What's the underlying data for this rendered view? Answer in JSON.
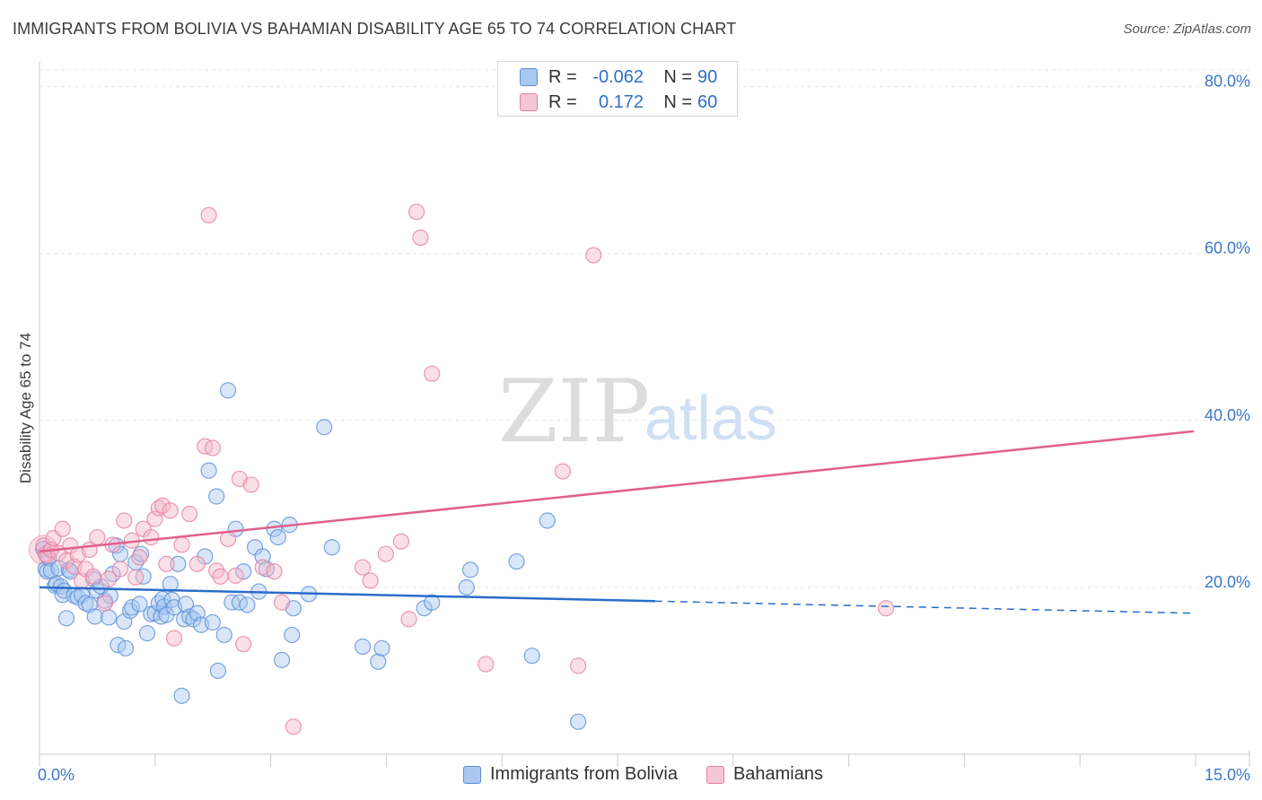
{
  "header": {
    "title": "IMMIGRANTS FROM BOLIVIA VS BAHAMIAN DISABILITY AGE 65 TO 74 CORRELATION CHART",
    "source": "Source: ZipAtlas.com"
  },
  "watermark": {
    "zip": "ZIP",
    "atlas": "atlas"
  },
  "stats_legend": {
    "rows": [
      {
        "r_label": "R =",
        "r_value": "-0.062",
        "n_label": "N =",
        "n_value": "90"
      },
      {
        "r_label": "R =",
        "r_value": "0.172",
        "n_label": "N =",
        "n_value": "60"
      }
    ]
  },
  "colors": {
    "blue_fill": "#a9c8f0",
    "blue_stroke": "#5b8fd8",
    "blue_line": "#2a6dc9",
    "pink_fill": "#f5b7c9",
    "pink_stroke": "#e67fa0",
    "pink_line": "#e0608a",
    "axis_text": "#3a78c8",
    "grid": "#e5e5e5"
  },
  "chart_data": {
    "type": "scatter",
    "title": "IMMIGRANTS FROM BOLIVIA VS BAHAMIAN DISABILITY AGE 65 TO 74 CORRELATION CHART",
    "xlabel": "",
    "ylabel": "Disability Age 65 to 74",
    "xlim": [
      0,
      15
    ],
    "ylim": [
      0,
      82
    ],
    "x_tick_labels": [
      {
        "value": 0,
        "label": "0.0%"
      },
      {
        "value": 15,
        "label": "15.0%"
      }
    ],
    "y_tick_labels": [
      {
        "value": 20,
        "label": "20.0%"
      },
      {
        "value": 40,
        "label": "40.0%"
      },
      {
        "value": 60,
        "label": "60.0%"
      },
      {
        "value": 80,
        "label": "80.0%"
      }
    ],
    "grid": true,
    "legend_position": "top-center",
    "series": [
      {
        "name": "Immigrants from Bolivia",
        "color": "blue",
        "trend": {
          "x": [
            0,
            15
          ],
          "y": [
            20.0,
            16.9
          ],
          "solid_until": 8.0
        },
        "points": [
          [
            0.05,
            24.6
          ],
          [
            0.08,
            22.2
          ],
          [
            0.1,
            21.9
          ],
          [
            0.12,
            23.5
          ],
          [
            0.15,
            22.0
          ],
          [
            0.2,
            20.2
          ],
          [
            0.22,
            20.4
          ],
          [
            0.25,
            22.3
          ],
          [
            0.28,
            20.1
          ],
          [
            0.3,
            19.1
          ],
          [
            0.32,
            19.6
          ],
          [
            0.35,
            16.3
          ],
          [
            0.38,
            22.1
          ],
          [
            0.4,
            21.9
          ],
          [
            0.45,
            19.0
          ],
          [
            0.5,
            18.8
          ],
          [
            0.55,
            19.1
          ],
          [
            0.6,
            18.1
          ],
          [
            0.65,
            17.9
          ],
          [
            0.7,
            21.0
          ],
          [
            0.72,
            16.5
          ],
          [
            0.75,
            19.6
          ],
          [
            0.8,
            20.1
          ],
          [
            0.85,
            18.4
          ],
          [
            0.9,
            16.4
          ],
          [
            0.92,
            19.0
          ],
          [
            0.95,
            21.6
          ],
          [
            1.0,
            25.0
          ],
          [
            1.02,
            13.1
          ],
          [
            1.05,
            24.0
          ],
          [
            1.1,
            15.9
          ],
          [
            1.12,
            12.7
          ],
          [
            1.18,
            17.2
          ],
          [
            1.2,
            17.6
          ],
          [
            1.25,
            23.0
          ],
          [
            1.3,
            18.0
          ],
          [
            1.32,
            24.0
          ],
          [
            1.35,
            21.3
          ],
          [
            1.4,
            14.5
          ],
          [
            1.45,
            16.8
          ],
          [
            1.5,
            16.9
          ],
          [
            1.55,
            18.1
          ],
          [
            1.58,
            16.5
          ],
          [
            1.6,
            18.6
          ],
          [
            1.62,
            17.7
          ],
          [
            1.65,
            16.7
          ],
          [
            1.7,
            20.4
          ],
          [
            1.72,
            18.5
          ],
          [
            1.75,
            17.6
          ],
          [
            1.8,
            22.8
          ],
          [
            1.85,
            7.0
          ],
          [
            1.88,
            16.2
          ],
          [
            1.9,
            18.0
          ],
          [
            1.95,
            16.5
          ],
          [
            2.0,
            16.2
          ],
          [
            2.05,
            16.9
          ],
          [
            2.1,
            15.5
          ],
          [
            2.15,
            23.7
          ],
          [
            2.2,
            34.0
          ],
          [
            2.25,
            15.8
          ],
          [
            2.3,
            30.9
          ],
          [
            2.32,
            10.0
          ],
          [
            2.4,
            14.3
          ],
          [
            2.45,
            43.6
          ],
          [
            2.5,
            18.2
          ],
          [
            2.55,
            27.0
          ],
          [
            2.6,
            18.2
          ],
          [
            2.65,
            21.9
          ],
          [
            2.7,
            17.9
          ],
          [
            2.8,
            24.8
          ],
          [
            2.85,
            19.5
          ],
          [
            2.9,
            23.7
          ],
          [
            2.95,
            22.2
          ],
          [
            3.05,
            27.0
          ],
          [
            3.1,
            26.0
          ],
          [
            3.15,
            11.3
          ],
          [
            3.25,
            27.5
          ],
          [
            3.28,
            14.3
          ],
          [
            3.3,
            17.5
          ],
          [
            3.5,
            19.2
          ],
          [
            3.7,
            39.2
          ],
          [
            3.8,
            24.8
          ],
          [
            4.2,
            12.9
          ],
          [
            4.4,
            11.1
          ],
          [
            4.45,
            12.7
          ],
          [
            5.0,
            17.5
          ],
          [
            5.1,
            18.2
          ],
          [
            5.55,
            20.0
          ],
          [
            5.6,
            22.1
          ],
          [
            6.2,
            23.1
          ],
          [
            6.4,
            11.8
          ],
          [
            6.6,
            28.0
          ],
          [
            7.0,
            3.9
          ]
        ]
      },
      {
        "name": "Bahamians",
        "color": "pink",
        "trend": {
          "x": [
            0,
            15
          ],
          "y": [
            24.3,
            38.7
          ]
        },
        "points": [
          [
            0.05,
            25.0
          ],
          [
            0.08,
            24.0
          ],
          [
            0.1,
            23.8
          ],
          [
            0.15,
            24.5
          ],
          [
            0.18,
            25.9
          ],
          [
            0.25,
            24.1
          ],
          [
            0.3,
            27.0
          ],
          [
            0.35,
            23.2
          ],
          [
            0.4,
            25.0
          ],
          [
            0.45,
            22.5
          ],
          [
            0.5,
            23.9
          ],
          [
            0.55,
            20.8
          ],
          [
            0.6,
            22.2
          ],
          [
            0.65,
            24.5
          ],
          [
            0.7,
            21.3
          ],
          [
            0.75,
            26.0
          ],
          [
            0.85,
            18.1
          ],
          [
            0.9,
            21.0
          ],
          [
            0.95,
            25.1
          ],
          [
            1.05,
            22.2
          ],
          [
            1.1,
            28.0
          ],
          [
            1.2,
            25.6
          ],
          [
            1.25,
            21.2
          ],
          [
            1.3,
            23.6
          ],
          [
            1.35,
            27.0
          ],
          [
            1.45,
            26.0
          ],
          [
            1.5,
            28.2
          ],
          [
            1.55,
            29.5
          ],
          [
            1.6,
            29.8
          ],
          [
            1.65,
            22.8
          ],
          [
            1.7,
            29.2
          ],
          [
            1.75,
            13.9
          ],
          [
            1.85,
            25.1
          ],
          [
            1.95,
            28.8
          ],
          [
            2.05,
            22.8
          ],
          [
            2.15,
            36.9
          ],
          [
            2.2,
            64.6
          ],
          [
            2.25,
            36.7
          ],
          [
            2.3,
            22.0
          ],
          [
            2.35,
            21.3
          ],
          [
            2.45,
            25.8
          ],
          [
            2.55,
            21.4
          ],
          [
            2.6,
            33.0
          ],
          [
            2.65,
            13.2
          ],
          [
            2.75,
            32.3
          ],
          [
            2.9,
            22.4
          ],
          [
            3.05,
            21.9
          ],
          [
            3.15,
            18.2
          ],
          [
            3.3,
            3.3
          ],
          [
            4.2,
            22.4
          ],
          [
            4.3,
            20.8
          ],
          [
            4.5,
            24.0
          ],
          [
            4.7,
            25.5
          ],
          [
            4.8,
            16.2
          ],
          [
            4.9,
            65.0
          ],
          [
            4.95,
            61.9
          ],
          [
            5.1,
            45.6
          ],
          [
            5.8,
            10.8
          ],
          [
            6.8,
            33.9
          ],
          [
            7.0,
            10.6
          ],
          [
            7.2,
            59.8
          ],
          [
            11.0,
            17.5
          ]
        ]
      }
    ]
  },
  "bottom_legend": {
    "items": [
      {
        "label": "Immigrants from Bolivia",
        "color": "blue"
      },
      {
        "label": "Bahamians",
        "color": "pink"
      }
    ]
  }
}
